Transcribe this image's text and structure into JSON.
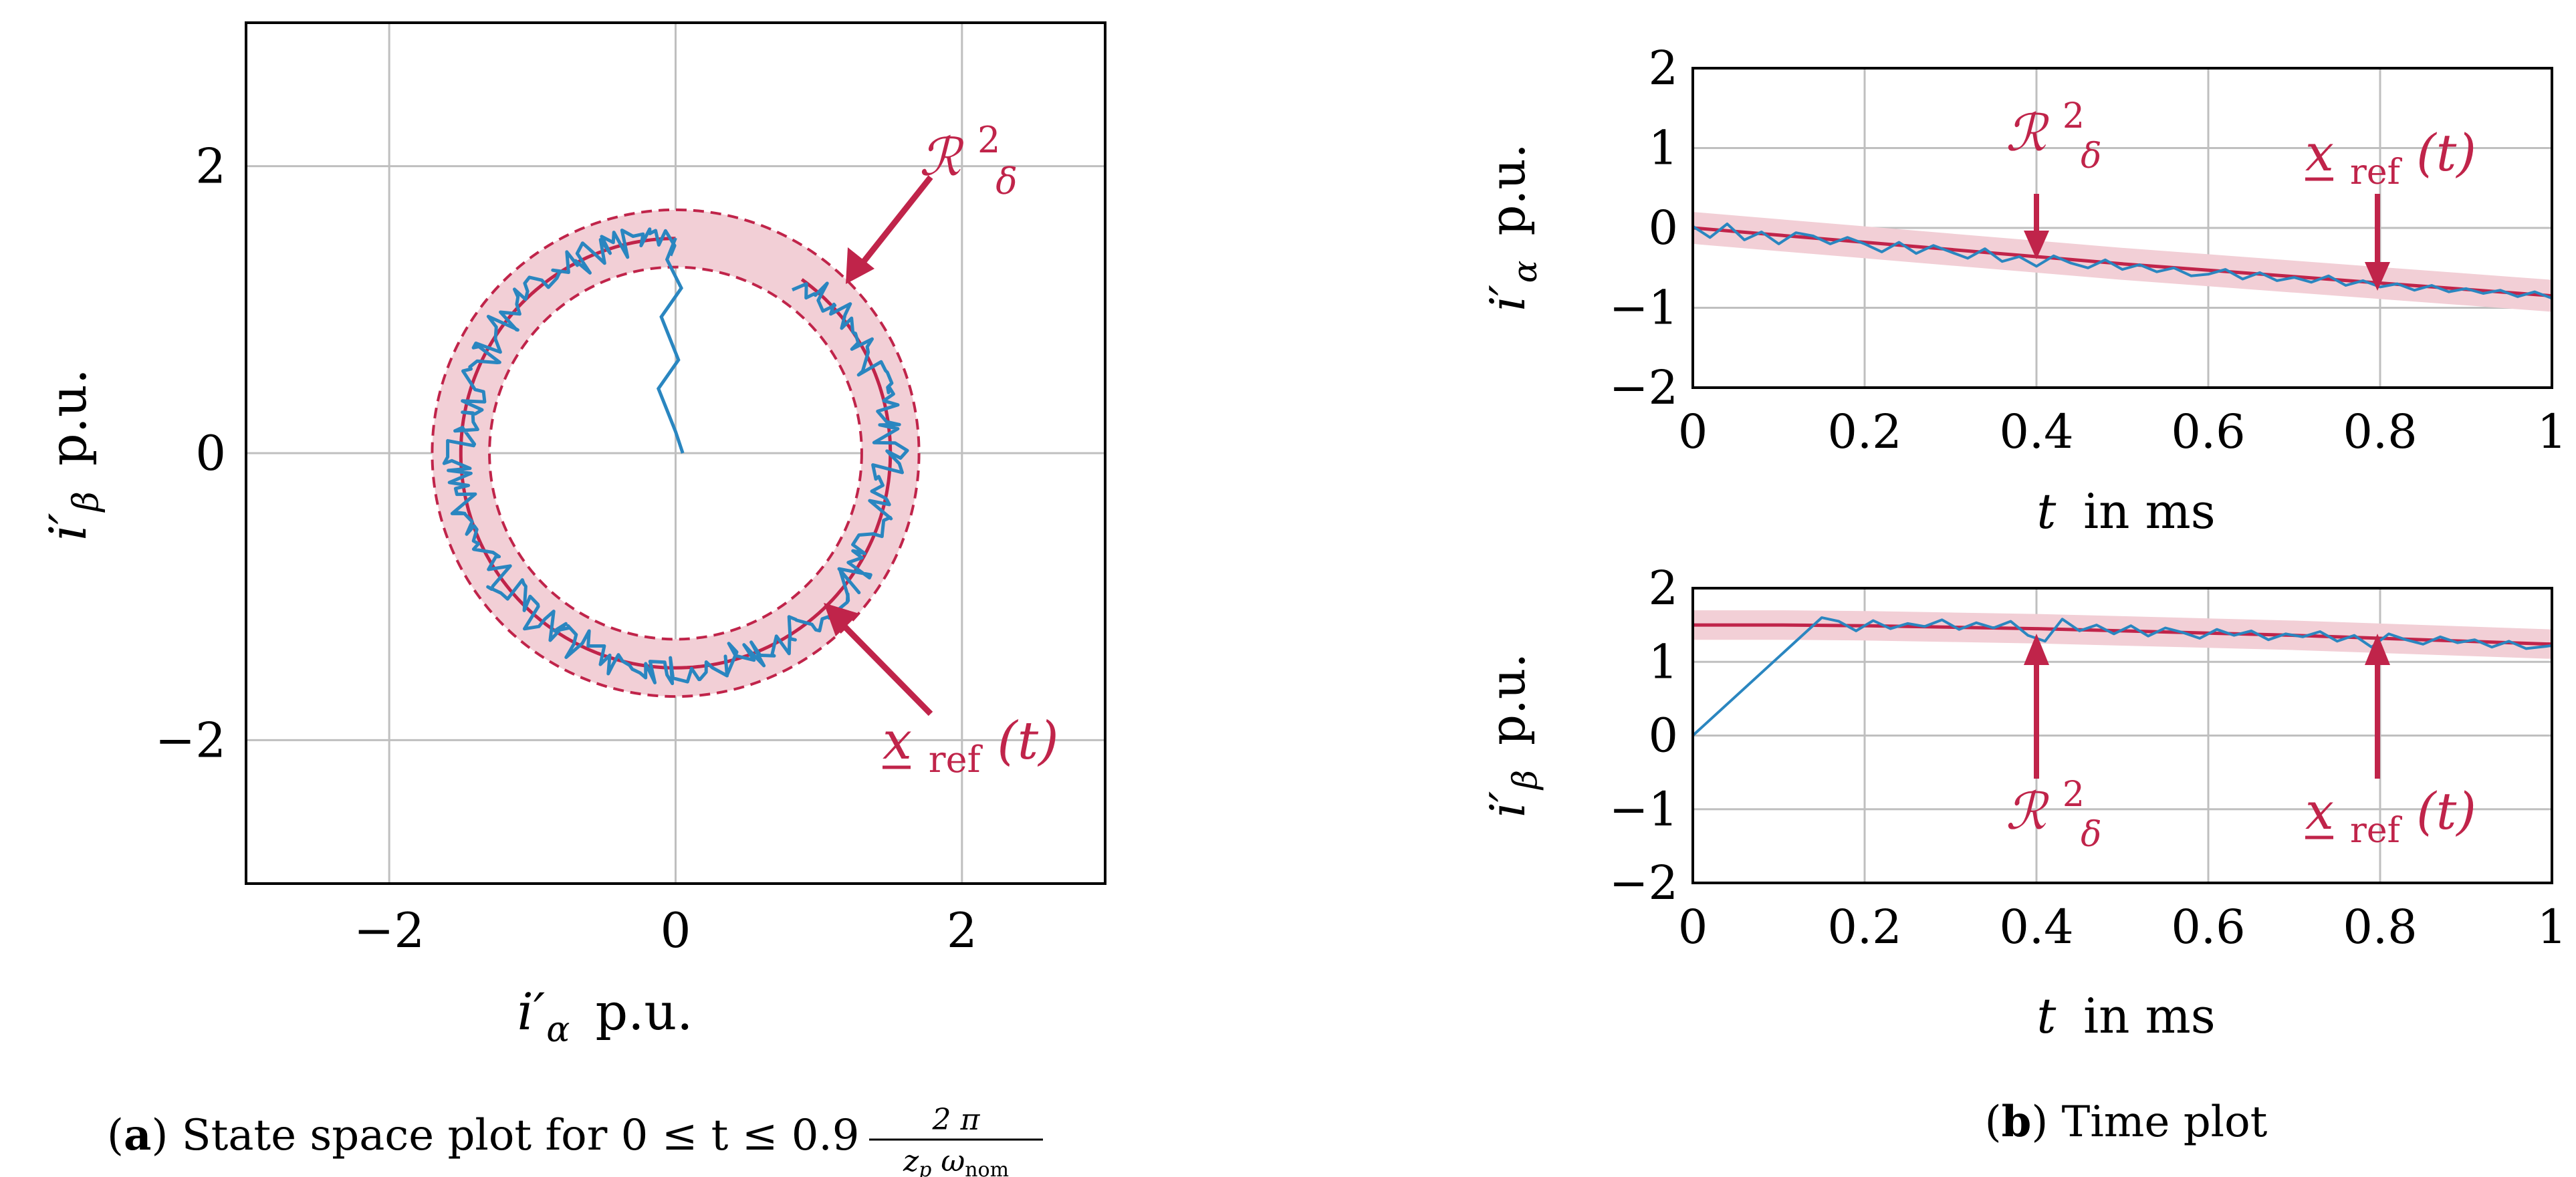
{
  "colors": {
    "reference": "#c0244a",
    "band_fill": "#f2cfd6",
    "measured": "#2a86c0",
    "grid": "#bfbfbf",
    "axis": "#000000"
  },
  "chart_data": [
    {
      "id": "a",
      "type": "line",
      "subtype": "state-space",
      "xlabel_sym": "i′",
      "xlabel_sub": "α",
      "xlabel_unit": "p.u.",
      "ylabel_sym": "i′",
      "ylabel_sub": "β",
      "ylabel_unit": "p.u.",
      "xlim": [
        -3,
        3
      ],
      "ylim": [
        -3,
        3
      ],
      "xticks": [
        -2,
        0,
        2
      ],
      "yticks": [
        -2,
        0,
        2
      ],
      "xtick_labels": [
        "−2",
        "0",
        "2"
      ],
      "ytick_labels": [
        "−2",
        "0",
        "2"
      ],
      "grid": true,
      "reference_radius": 1.5,
      "band_inner_radius": 1.3,
      "band_outer_radius": 1.7,
      "reference_start_deg": 90,
      "reference_sweep_deg": 324,
      "startup_path": {
        "x": [
          0.05,
          0.0,
          -0.12,
          0.02,
          -0.1,
          0.04,
          -0.06,
          0.0
        ],
        "y": [
          0.0,
          0.15,
          0.45,
          0.65,
          0.95,
          1.15,
          1.35,
          1.5
        ]
      },
      "noise_amplitude": 0.12,
      "noise_points": 260,
      "annotations": {
        "band": {
          "main": "ℛ",
          "sup": "2",
          "sub": "δ"
        },
        "reference": {
          "main": "x",
          "sub": "ref",
          "arg": "(t)"
        }
      },
      "caption": {
        "label": "a",
        "text": " State space plot for 0 ≤ t ≤ 0.9",
        "frac_num": "2 π",
        "frac_den_main": "z",
        "frac_den_sub1": "p",
        "frac_den_mid": " ω",
        "frac_den_sub2": "nom"
      }
    },
    {
      "id": "b1",
      "type": "line",
      "title": "",
      "xlabel_sym": "t",
      "xlabel_unit": "in ms",
      "ylabel_sym": "i′",
      "ylabel_sub": "α",
      "ylabel_unit": "p.u.",
      "xlim": [
        0,
        1
      ],
      "ylim": [
        -2,
        2
      ],
      "xticks": [
        0,
        0.2,
        0.4,
        0.6,
        0.8,
        1
      ],
      "xtick_labels": [
        "0",
        "0.2",
        "0.4",
        "0.6",
        "0.8",
        "1"
      ],
      "yticks": [
        -2,
        -1,
        0,
        1,
        2
      ],
      "ytick_labels": [
        "−2",
        "−1",
        "0",
        "1",
        "2"
      ],
      "grid": true,
      "series": [
        {
          "name": "reference",
          "x": [
            0,
            0.1,
            0.2,
            0.3,
            0.4,
            0.5,
            0.6,
            0.7,
            0.8,
            0.9,
            1.0
          ],
          "values": [
            0.0,
            -0.09,
            -0.18,
            -0.27,
            -0.36,
            -0.45,
            -0.53,
            -0.61,
            -0.69,
            -0.77,
            -0.85
          ]
        },
        {
          "name": "measured",
          "x": [
            0,
            0.02,
            0.04,
            0.06,
            0.08,
            0.1,
            0.12,
            0.14,
            0.16,
            0.18,
            0.2,
            0.22,
            0.24,
            0.26,
            0.28,
            0.3,
            0.32,
            0.34,
            0.36,
            0.38,
            0.4,
            0.42,
            0.44,
            0.46,
            0.48,
            0.5,
            0.52,
            0.54,
            0.56,
            0.58,
            0.6,
            0.62,
            0.64,
            0.66,
            0.68,
            0.7,
            0.72,
            0.74,
            0.76,
            0.78,
            0.8,
            0.82,
            0.84,
            0.86,
            0.88,
            0.9,
            0.92,
            0.94,
            0.96,
            0.98,
            1.0
          ],
          "values": [
            0.02,
            -0.12,
            0.05,
            -0.15,
            -0.05,
            -0.2,
            -0.06,
            -0.1,
            -0.2,
            -0.12,
            -0.2,
            -0.3,
            -0.18,
            -0.32,
            -0.22,
            -0.3,
            -0.38,
            -0.26,
            -0.42,
            -0.36,
            -0.48,
            -0.35,
            -0.44,
            -0.5,
            -0.4,
            -0.52,
            -0.46,
            -0.55,
            -0.5,
            -0.6,
            -0.58,
            -0.52,
            -0.64,
            -0.56,
            -0.66,
            -0.62,
            -0.68,
            -0.6,
            -0.72,
            -0.66,
            -0.74,
            -0.7,
            -0.78,
            -0.72,
            -0.8,
            -0.76,
            -0.82,
            -0.78,
            -0.86,
            -0.8,
            -0.88
          ]
        }
      ],
      "band_half_width": 0.2,
      "annotations": {
        "band": {
          "main": "ℛ",
          "sup": "2",
          "sub": "δ",
          "x": 0.4
        },
        "reference": {
          "main": "x",
          "sub": "ref",
          "arg": "(t)",
          "x": 0.8
        }
      }
    },
    {
      "id": "b2",
      "type": "line",
      "title": "",
      "xlabel_sym": "t",
      "xlabel_unit": "in ms",
      "ylabel_sym": "i′",
      "ylabel_sub": "β",
      "ylabel_unit": "p.u.",
      "xlim": [
        0,
        1
      ],
      "ylim": [
        -2,
        2
      ],
      "xticks": [
        0,
        0.2,
        0.4,
        0.6,
        0.8,
        1
      ],
      "xtick_labels": [
        "0",
        "0.2",
        "0.4",
        "0.6",
        "0.8",
        "1"
      ],
      "yticks": [
        -2,
        -1,
        0,
        1,
        2
      ],
      "ytick_labels": [
        "−2",
        "−1",
        "0",
        "1",
        "2"
      ],
      "grid": true,
      "series": [
        {
          "name": "reference",
          "x": [
            0,
            0.1,
            0.2,
            0.3,
            0.4,
            0.5,
            0.6,
            0.7,
            0.8,
            0.9,
            1.0
          ],
          "values": [
            1.5,
            1.5,
            1.49,
            1.47,
            1.45,
            1.42,
            1.39,
            1.36,
            1.32,
            1.28,
            1.24
          ]
        },
        {
          "name": "measured",
          "x": [
            0,
            0.15,
            0.17,
            0.19,
            0.21,
            0.23,
            0.25,
            0.27,
            0.29,
            0.31,
            0.33,
            0.35,
            0.37,
            0.39,
            0.41,
            0.43,
            0.45,
            0.47,
            0.49,
            0.51,
            0.53,
            0.55,
            0.57,
            0.59,
            0.61,
            0.63,
            0.65,
            0.67,
            0.69,
            0.71,
            0.73,
            0.75,
            0.77,
            0.79,
            0.81,
            0.83,
            0.85,
            0.87,
            0.89,
            0.91,
            0.93,
            0.95,
            0.97,
            1.0
          ],
          "values": [
            0.0,
            1.6,
            1.55,
            1.42,
            1.56,
            1.45,
            1.52,
            1.48,
            1.57,
            1.44,
            1.53,
            1.46,
            1.55,
            1.36,
            1.28,
            1.58,
            1.42,
            1.5,
            1.38,
            1.49,
            1.35,
            1.46,
            1.4,
            1.32,
            1.44,
            1.36,
            1.42,
            1.3,
            1.38,
            1.34,
            1.41,
            1.28,
            1.36,
            1.2,
            1.38,
            1.3,
            1.24,
            1.34,
            1.26,
            1.3,
            1.2,
            1.28,
            1.18,
            1.22
          ]
        }
      ],
      "band_half_width": 0.2,
      "annotations": {
        "band": {
          "main": "ℛ",
          "sup": "2",
          "sub": "δ",
          "x": 0.4
        },
        "reference": {
          "main": "x",
          "sub": "ref",
          "arg": "(t)",
          "x": 0.8
        }
      },
      "caption": {
        "label": "b",
        "text": " Time plot"
      }
    }
  ]
}
